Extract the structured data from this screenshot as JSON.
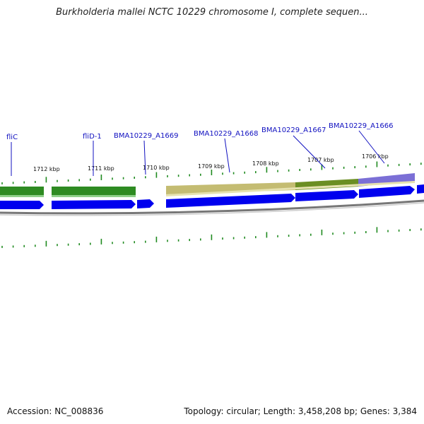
{
  "title": "Burkholderia mallei NCTC 10229 chromosome I, complete sequen...",
  "footer": {
    "accession": "Accession: NC_008836",
    "summary": "Topology: circular; Length: 3,458,208 bp; Genes: 3,384"
  },
  "colors": {
    "cds_arrow": "#0000ee",
    "gene_green": "#2e8b22",
    "gene_olive": "#c4bc72",
    "gene_dark_olive": "#6b8e23",
    "gene_purple": "#7b6fd6",
    "backbone": "#888888",
    "tick": "#1f8a1f",
    "gene_label": "#1010c0"
  },
  "kbp_labels": [
    "1712 kbp",
    "1711 kbp",
    "1710 kbp",
    "1709 kbp",
    "1708 kbp",
    "1707 kbp",
    "1706 kbp"
  ],
  "gene_labels": [
    "fliC",
    "fliD-1",
    "BMA10229_A1669",
    "BMA10229_A1668",
    "BMA10229_A1667",
    "BMA10229_A1666"
  ]
}
